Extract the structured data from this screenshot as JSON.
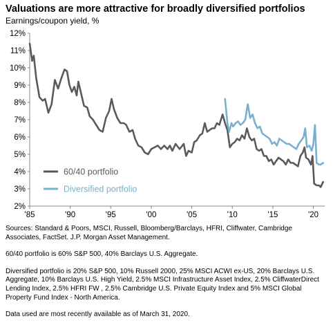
{
  "header": {
    "title": "Valuations are more attractive for broadly diversified portfolios",
    "subtitle": "Earnings/coupon  yield, %"
  },
  "chart_data": {
    "type": "line",
    "xlim": [
      1985,
      2021.4
    ],
    "ylim": [
      2,
      12
    ],
    "x_ticks": [
      {
        "value": 1985,
        "label": "'85"
      },
      {
        "value": 1990,
        "label": "'90"
      },
      {
        "value": 1995,
        "label": "'95"
      },
      {
        "value": 2000,
        "label": "'00"
      },
      {
        "value": 2005,
        "label": "'05"
      },
      {
        "value": 2010,
        "label": "'10"
      },
      {
        "value": 2015,
        "label": "'15"
      },
      {
        "value": 2020,
        "label": "'20"
      }
    ],
    "y_ticks": [
      {
        "value": 2,
        "label": "2%"
      },
      {
        "value": 3,
        "label": "3%"
      },
      {
        "value": 4,
        "label": "4%"
      },
      {
        "value": 5,
        "label": "5%"
      },
      {
        "value": 6,
        "label": "6%"
      },
      {
        "value": 7,
        "label": "7%"
      },
      {
        "value": 8,
        "label": "8%"
      },
      {
        "value": 9,
        "label": "9%"
      },
      {
        "value": 10,
        "label": "10%"
      },
      {
        "value": 11,
        "label": "11%"
      },
      {
        "value": 12,
        "label": "12%"
      }
    ],
    "grid": false,
    "legend_position": "bottom-left",
    "series": [
      {
        "name": "60/40 portfolio",
        "color": "#5a5a5a",
        "points": [
          [
            1985.0,
            11.4
          ],
          [
            1985.3,
            10.4
          ],
          [
            1985.5,
            10.7
          ],
          [
            1985.8,
            9.4
          ],
          [
            1986.2,
            8.3
          ],
          [
            1986.6,
            8.1
          ],
          [
            1986.9,
            8.2
          ],
          [
            1987.3,
            7.4
          ],
          [
            1987.7,
            7.9
          ],
          [
            1988.1,
            9.3
          ],
          [
            1988.5,
            8.8
          ],
          [
            1988.9,
            9.4
          ],
          [
            1989.3,
            9.9
          ],
          [
            1989.6,
            9.8
          ],
          [
            1989.9,
            9.0
          ],
          [
            1990.2,
            8.6
          ],
          [
            1990.5,
            8.9
          ],
          [
            1990.8,
            8.4
          ],
          [
            1991.0,
            9.2
          ],
          [
            1991.3,
            8.6
          ],
          [
            1991.7,
            7.8
          ],
          [
            1992.1,
            7.7
          ],
          [
            1992.4,
            7.2
          ],
          [
            1992.8,
            7.0
          ],
          [
            1993.2,
            6.7
          ],
          [
            1993.6,
            6.4
          ],
          [
            1994.0,
            6.3
          ],
          [
            1994.4,
            7.1
          ],
          [
            1994.8,
            7.5
          ],
          [
            1995.1,
            8.2
          ],
          [
            1995.4,
            7.6
          ],
          [
            1995.8,
            7.1
          ],
          [
            1996.2,
            6.8
          ],
          [
            1996.6,
            6.8
          ],
          [
            1996.9,
            6.7
          ],
          [
            1997.3,
            6.3
          ],
          [
            1997.7,
            6.4
          ],
          [
            1998.0,
            5.9
          ],
          [
            1998.4,
            5.5
          ],
          [
            1998.8,
            5.4
          ],
          [
            1999.2,
            5.1
          ],
          [
            1999.6,
            5.0
          ],
          [
            2000.0,
            5.3
          ],
          [
            2000.4,
            5.4
          ],
          [
            2000.8,
            5.5
          ],
          [
            2001.2,
            5.3
          ],
          [
            2001.6,
            5.5
          ],
          [
            2002.0,
            5.3
          ],
          [
            2002.3,
            5.5
          ],
          [
            2002.6,
            5.2
          ],
          [
            2003.0,
            5.6
          ],
          [
            2003.5,
            5.3
          ],
          [
            2004.0,
            5.6
          ],
          [
            2004.3,
            4.9
          ],
          [
            2004.6,
            5.2
          ],
          [
            2005.0,
            5.1
          ],
          [
            2005.3,
            5.7
          ],
          [
            2005.6,
            5.8
          ],
          [
            2006.0,
            6.1
          ],
          [
            2006.3,
            6.2
          ],
          [
            2006.6,
            6.8
          ],
          [
            2006.9,
            6.3
          ],
          [
            2007.2,
            6.4
          ],
          [
            2007.5,
            6.5
          ],
          [
            2007.8,
            6.5
          ],
          [
            2008.1,
            6.8
          ],
          [
            2008.4,
            6.7
          ],
          [
            2008.8,
            7.3
          ],
          [
            2009.1,
            6.8
          ],
          [
            2009.4,
            6.4
          ],
          [
            2009.7,
            5.4
          ],
          [
            2010.0,
            5.6
          ],
          [
            2010.3,
            5.7
          ],
          [
            2010.6,
            5.9
          ],
          [
            2010.9,
            5.8
          ],
          [
            2011.2,
            6.1
          ],
          [
            2011.5,
            5.9
          ],
          [
            2011.8,
            6.5
          ],
          [
            2012.1,
            6.0
          ],
          [
            2012.4,
            5.8
          ],
          [
            2012.7,
            5.9
          ],
          [
            2013.0,
            5.3
          ],
          [
            2013.3,
            5.2
          ],
          [
            2013.6,
            5.3
          ],
          [
            2013.9,
            4.9
          ],
          [
            2014.2,
            4.9
          ],
          [
            2014.5,
            4.6
          ],
          [
            2014.8,
            4.7
          ],
          [
            2015.1,
            4.4
          ],
          [
            2015.4,
            4.6
          ],
          [
            2015.7,
            4.8
          ],
          [
            2016.0,
            4.7
          ],
          [
            2016.3,
            4.6
          ],
          [
            2016.6,
            4.4
          ],
          [
            2016.9,
            4.7
          ],
          [
            2017.2,
            4.5
          ],
          [
            2017.5,
            4.5
          ],
          [
            2017.8,
            4.4
          ],
          [
            2018.1,
            4.3
          ],
          [
            2018.4,
            4.9
          ],
          [
            2018.7,
            5.1
          ],
          [
            2018.9,
            5.4
          ],
          [
            2019.1,
            4.8
          ],
          [
            2019.4,
            4.7
          ],
          [
            2019.7,
            4.4
          ],
          [
            2019.9,
            4.9
          ],
          [
            2020.1,
            3.3
          ],
          [
            2020.4,
            3.2
          ],
          [
            2020.7,
            3.2
          ],
          [
            2020.9,
            3.1
          ],
          [
            2021.2,
            3.4
          ]
        ]
      },
      {
        "name": "Diversified portfolio",
        "color": "#79b0cf",
        "points": [
          [
            2009.1,
            8.2
          ],
          [
            2009.4,
            6.8
          ],
          [
            2009.6,
            6.3
          ],
          [
            2009.9,
            6.8
          ],
          [
            2010.1,
            6.6
          ],
          [
            2010.4,
            6.8
          ],
          [
            2010.7,
            6.9
          ],
          [
            2011.0,
            6.7
          ],
          [
            2011.3,
            6.8
          ],
          [
            2011.6,
            7.0
          ],
          [
            2011.9,
            7.9
          ],
          [
            2012.2,
            7.1
          ],
          [
            2012.5,
            7.3
          ],
          [
            2012.8,
            6.8
          ],
          [
            2013.1,
            6.5
          ],
          [
            2013.4,
            6.6
          ],
          [
            2013.7,
            6.2
          ],
          [
            2014.0,
            6.1
          ],
          [
            2014.3,
            6.0
          ],
          [
            2014.6,
            5.9
          ],
          [
            2014.9,
            5.6
          ],
          [
            2015.2,
            5.7
          ],
          [
            2015.5,
            5.5
          ],
          [
            2015.8,
            5.9
          ],
          [
            2016.1,
            5.8
          ],
          [
            2016.4,
            5.7
          ],
          [
            2016.7,
            5.6
          ],
          [
            2017.0,
            5.6
          ],
          [
            2017.3,
            5.5
          ],
          [
            2017.6,
            5.4
          ],
          [
            2017.9,
            5.3
          ],
          [
            2018.2,
            5.6
          ],
          [
            2018.5,
            5.8
          ],
          [
            2018.8,
            6.0
          ],
          [
            2019.0,
            6.5
          ],
          [
            2019.2,
            5.4
          ],
          [
            2019.5,
            5.5
          ],
          [
            2019.8,
            5.2
          ],
          [
            2020.0,
            5.6
          ],
          [
            2020.2,
            6.7
          ],
          [
            2020.4,
            4.5
          ],
          [
            2020.7,
            4.4
          ],
          [
            2020.9,
            4.4
          ],
          [
            2021.2,
            4.5
          ]
        ]
      }
    ]
  },
  "notes": {
    "sources": "Sources: Standard & Poors, MSCI,  Russell, Bloomberg/Barclays, HFRI,  Cliffwater, Cambridge Associates, FactSet. J.P. Morgan Asset Management.",
    "sixty_forty": "60/40 portfolio is 60% S&P 500, 40% Barclays U.S. Aggregate.",
    "diversified": "Diversified portfolio is 20% S&P 500, 10% Russell 2000, 25% MSCI  ACWI ex-US, 20% Barclays U.S.  Aggregate, 10% Barclays U.S. High  Yield, 2.5% MSCI  Infrastructure Asset Index, 2.5% CliffwaterDirect Lending Index, 2.5% HFRI  FW , 2.5% Cambridge U.S. Private Equity Index and 5% MSCI  Global Property Fund Index - North America.",
    "data_date": "Data used are most recently available as of March 31, 2020."
  }
}
